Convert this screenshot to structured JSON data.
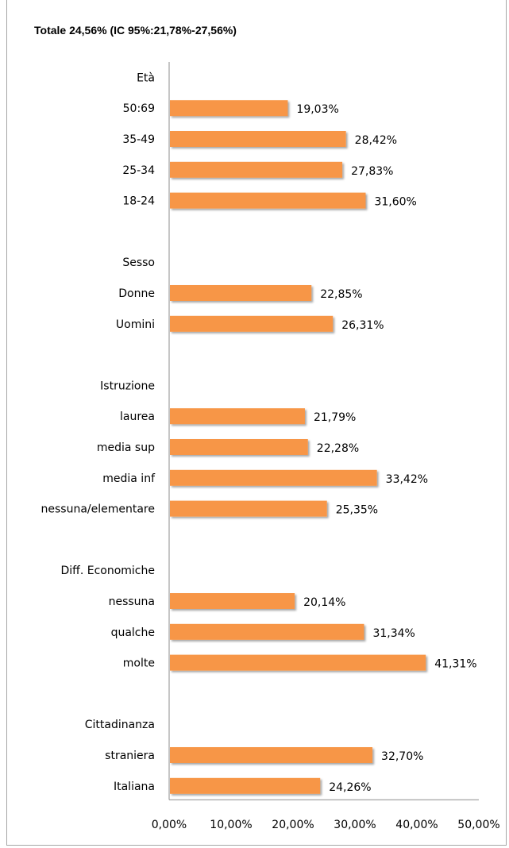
{
  "chart_data": {
    "type": "bar",
    "orientation": "horizontal",
    "title": "Totale 24,56% (IC 95%:21,78%-27,56%)",
    "xlabel": "",
    "ylabel": "",
    "xlim": [
      0,
      50
    ],
    "grid": false,
    "legend": "none",
    "bar_color": "#f79646",
    "ticks": [
      "0,00%",
      "10,00%",
      "20,00%",
      "30,00%",
      "40,00%",
      "50,00%"
    ],
    "tick_values": [
      0,
      10,
      20,
      30,
      40,
      50
    ],
    "rows": [
      {
        "label": "Età",
        "value": null,
        "value_label": ""
      },
      {
        "label": "50:69",
        "value": 19.03,
        "value_label": "19,03%"
      },
      {
        "label": "35-49",
        "value": 28.42,
        "value_label": "28,42%"
      },
      {
        "label": "25-34",
        "value": 27.83,
        "value_label": "27,83%"
      },
      {
        "label": "18-24",
        "value": 31.6,
        "value_label": "31,60%"
      },
      {
        "label": "",
        "value": null,
        "value_label": ""
      },
      {
        "label": "Sesso",
        "value": null,
        "value_label": ""
      },
      {
        "label": "Donne",
        "value": 22.85,
        "value_label": "22,85%"
      },
      {
        "label": "Uomini",
        "value": 26.31,
        "value_label": "26,31%"
      },
      {
        "label": "",
        "value": null,
        "value_label": ""
      },
      {
        "label": "Istruzione",
        "value": null,
        "value_label": ""
      },
      {
        "label": "laurea",
        "value": 21.79,
        "value_label": "21,79%"
      },
      {
        "label": "media sup",
        "value": 22.28,
        "value_label": "22,28%"
      },
      {
        "label": "media inf",
        "value": 33.42,
        "value_label": "33,42%"
      },
      {
        "label": "nessuna/elementare",
        "value": 25.35,
        "value_label": "25,35%"
      },
      {
        "label": "",
        "value": null,
        "value_label": ""
      },
      {
        "label": "Diff. Economiche",
        "value": null,
        "value_label": ""
      },
      {
        "label": "nessuna",
        "value": 20.14,
        "value_label": "20,14%"
      },
      {
        "label": "qualche",
        "value": 31.34,
        "value_label": "31,34%"
      },
      {
        "label": "molte",
        "value": 41.31,
        "value_label": "41,31%"
      },
      {
        "label": "",
        "value": null,
        "value_label": ""
      },
      {
        "label": "Cittadinanza",
        "value": null,
        "value_label": ""
      },
      {
        "label": "straniera",
        "value": 32.7,
        "value_label": "32,70%"
      },
      {
        "label": "Italiana",
        "value": 24.26,
        "value_label": "24,26%"
      }
    ]
  }
}
